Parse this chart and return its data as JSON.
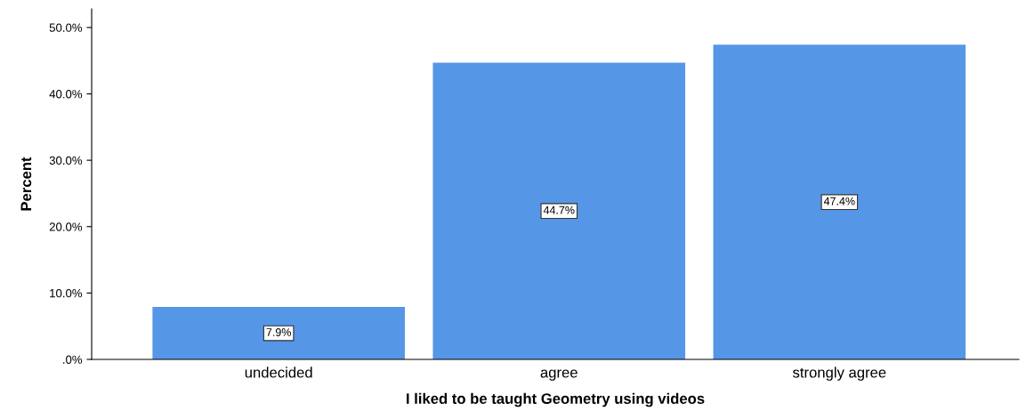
{
  "chart_data": {
    "type": "bar",
    "xlabel": "I liked to be taught Geometry using videos",
    "ylabel": "Percent",
    "categories": [
      "undecided",
      "agree",
      "strongly agree"
    ],
    "values": [
      7.9,
      44.7,
      47.4
    ],
    "value_labels": [
      "7.9%",
      "44.7%",
      "47.4%"
    ],
    "color": "#5596e6",
    "ylim": [
      0,
      52.8
    ],
    "yticks": [
      {
        "value": 0,
        "label": ".0%"
      },
      {
        "value": 10,
        "label": "10.0%"
      },
      {
        "value": 20,
        "label": "20.0%"
      },
      {
        "value": 30,
        "label": "30.0%"
      },
      {
        "value": 40,
        "label": "40.0%"
      },
      {
        "value": 50,
        "label": "50.0%"
      }
    ],
    "grid": false,
    "legend": false
  }
}
